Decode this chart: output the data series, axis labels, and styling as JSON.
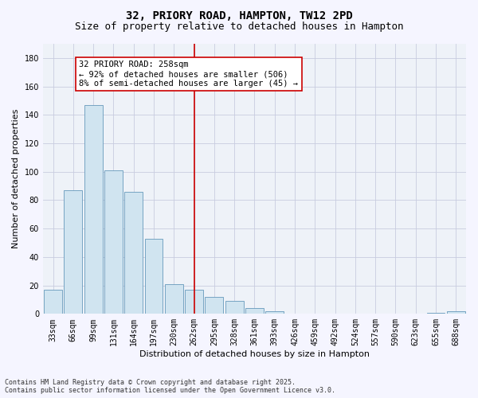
{
  "title": "32, PRIORY ROAD, HAMPTON, TW12 2PD",
  "subtitle": "Size of property relative to detached houses in Hampton",
  "xlabel": "Distribution of detached houses by size in Hampton",
  "ylabel": "Number of detached properties",
  "categories": [
    "33sqm",
    "66sqm",
    "99sqm",
    "131sqm",
    "164sqm",
    "197sqm",
    "230sqm",
    "262sqm",
    "295sqm",
    "328sqm",
    "361sqm",
    "393sqm",
    "426sqm",
    "459sqm",
    "492sqm",
    "524sqm",
    "557sqm",
    "590sqm",
    "623sqm",
    "655sqm",
    "688sqm"
  ],
  "values": [
    17,
    87,
    147,
    101,
    86,
    53,
    21,
    17,
    12,
    9,
    4,
    2,
    0,
    0,
    0,
    0,
    0,
    0,
    0,
    1,
    2
  ],
  "bar_color": "#d0e4f0",
  "bar_edge_color": "#6699bb",
  "vline_x": 7,
  "vline_color": "#cc0000",
  "annotation_text": "32 PRIORY ROAD: 258sqm\n← 92% of detached houses are smaller (506)\n8% of semi-detached houses are larger (45) →",
  "annotation_box_color": "#ffffff",
  "annotation_box_edge": "#cc0000",
  "ylim": [
    0,
    190
  ],
  "yticks": [
    0,
    20,
    40,
    60,
    80,
    100,
    120,
    140,
    160,
    180
  ],
  "footer_line1": "Contains HM Land Registry data © Crown copyright and database right 2025.",
  "footer_line2": "Contains public sector information licensed under the Open Government Licence v3.0.",
  "bg_color": "#eef2f8",
  "grid_color": "#c8cce0",
  "title_fontsize": 10,
  "subtitle_fontsize": 9,
  "axis_label_fontsize": 8,
  "tick_fontsize": 7,
  "annotation_fontsize": 7.5,
  "footer_fontsize": 6
}
